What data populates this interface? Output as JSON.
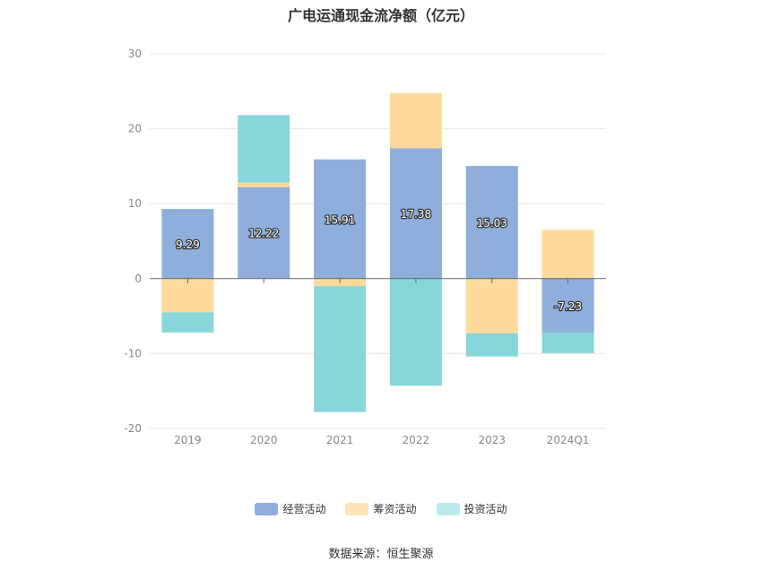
{
  "chart_data": {
    "type": "bar",
    "stacked": true,
    "title": "广电运通现金流净额（亿元）",
    "categories": [
      "2019",
      "2020",
      "2021",
      "2022",
      "2023",
      "2024Q1"
    ],
    "series": [
      {
        "name": "经营活动",
        "color": "#8eaedb",
        "values": [
          9.29,
          12.22,
          15.91,
          17.38,
          15.03,
          -7.23
        ],
        "labels": [
          "9.29",
          "12.22",
          "15.91",
          "17.38",
          "15.03",
          "-7.23"
        ]
      },
      {
        "name": "筹资活动",
        "color": "#fdd99b",
        "values": [
          -4.5,
          0.6,
          -1.0,
          7.4,
          -7.3,
          6.5
        ]
      },
      {
        "name": "投资活动",
        "color": "#87d6d9",
        "values": [
          -2.7,
          9.0,
          -16.8,
          -14.3,
          -3.1,
          -2.7
        ]
      }
    ],
    "y_ticks": [
      "30",
      "20",
      "10",
      "0",
      "-10",
      "-20"
    ],
    "ylim": [
      -20,
      30
    ],
    "grid": true,
    "legend_position": "bottom"
  },
  "legend": {
    "items": [
      {
        "label": "经营活动",
        "color": "#8eaedb"
      },
      {
        "label": "筹资活动",
        "color": "#fde4b8"
      },
      {
        "label": "投资活动",
        "color": "#bde8ea"
      }
    ]
  },
  "source": "数据来源：恒生聚源"
}
